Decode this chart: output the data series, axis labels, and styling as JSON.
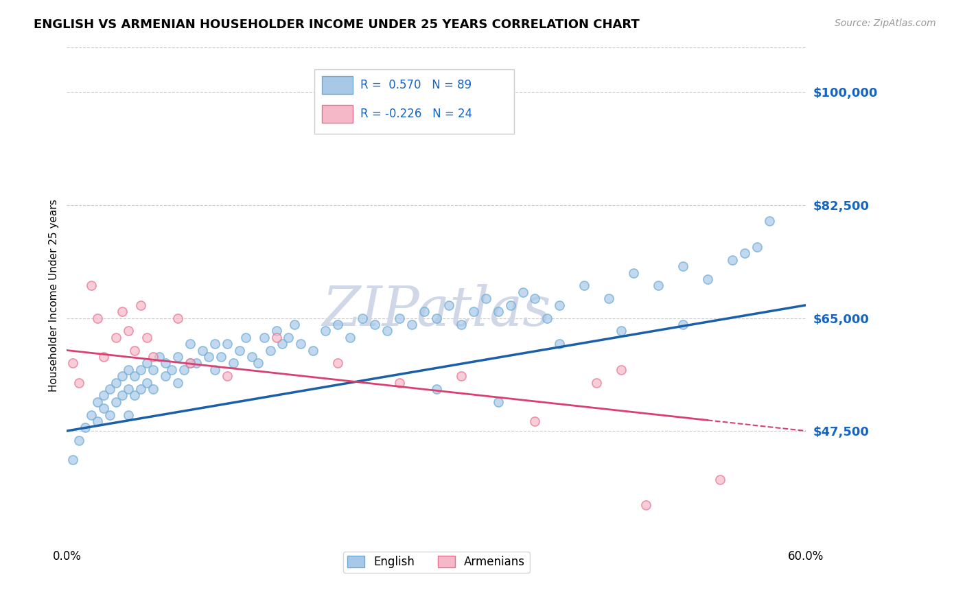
{
  "title": "ENGLISH VS ARMENIAN HOUSEHOLDER INCOME UNDER 25 YEARS CORRELATION CHART",
  "source": "Source: ZipAtlas.com",
  "ylabel": "Householder Income Under 25 years",
  "xmin": 0.0,
  "xmax": 0.6,
  "ymin": 30000,
  "ymax": 107000,
  "yticks": [
    47500,
    65000,
    82500,
    100000
  ],
  "ytick_labels": [
    "$47,500",
    "$65,000",
    "$82,500",
    "$100,000"
  ],
  "xtick_labels": [
    "0.0%",
    "60.0%"
  ],
  "english_R": 0.57,
  "english_N": 89,
  "armenian_R": -0.226,
  "armenian_N": 24,
  "english_color": "#a8c8e8",
  "english_edge_color": "#6aaad4",
  "english_line_color": "#1a5fa8",
  "armenian_color": "#f4b8c8",
  "armenian_edge_color": "#e87090",
  "armenian_line_color": "#d94070",
  "legend_R_color": "#1565C0",
  "watermark_color": "#d0d8e8",
  "background_color": "#ffffff",
  "grid_color": "#cccccc",
  "english_x": [
    0.005,
    0.01,
    0.015,
    0.02,
    0.025,
    0.025,
    0.03,
    0.03,
    0.035,
    0.035,
    0.04,
    0.04,
    0.045,
    0.045,
    0.05,
    0.05,
    0.05,
    0.055,
    0.055,
    0.06,
    0.06,
    0.065,
    0.065,
    0.07,
    0.07,
    0.075,
    0.08,
    0.08,
    0.085,
    0.09,
    0.09,
    0.095,
    0.1,
    0.1,
    0.105,
    0.11,
    0.115,
    0.12,
    0.12,
    0.125,
    0.13,
    0.135,
    0.14,
    0.145,
    0.15,
    0.155,
    0.16,
    0.165,
    0.17,
    0.175,
    0.18,
    0.185,
    0.19,
    0.2,
    0.21,
    0.22,
    0.23,
    0.24,
    0.25,
    0.26,
    0.27,
    0.28,
    0.29,
    0.3,
    0.31,
    0.32,
    0.33,
    0.34,
    0.35,
    0.36,
    0.37,
    0.38,
    0.39,
    0.4,
    0.42,
    0.44,
    0.46,
    0.48,
    0.5,
    0.52,
    0.54,
    0.55,
    0.56,
    0.57,
    0.5,
    0.45,
    0.4,
    0.35,
    0.3
  ],
  "english_y": [
    43000,
    46000,
    48000,
    50000,
    52000,
    49000,
    51000,
    53000,
    50000,
    54000,
    52000,
    55000,
    53000,
    56000,
    54000,
    50000,
    57000,
    53000,
    56000,
    54000,
    57000,
    55000,
    58000,
    54000,
    57000,
    59000,
    56000,
    58000,
    57000,
    55000,
    59000,
    57000,
    58000,
    61000,
    58000,
    60000,
    59000,
    57000,
    61000,
    59000,
    61000,
    58000,
    60000,
    62000,
    59000,
    58000,
    62000,
    60000,
    63000,
    61000,
    62000,
    64000,
    61000,
    60000,
    63000,
    64000,
    62000,
    65000,
    64000,
    63000,
    65000,
    64000,
    66000,
    65000,
    67000,
    64000,
    66000,
    68000,
    66000,
    67000,
    69000,
    68000,
    65000,
    67000,
    70000,
    68000,
    72000,
    70000,
    73000,
    71000,
    74000,
    75000,
    76000,
    80000,
    64000,
    63000,
    61000,
    52000,
    54000
  ],
  "armenian_x": [
    0.005,
    0.01,
    0.02,
    0.025,
    0.03,
    0.04,
    0.045,
    0.05,
    0.055,
    0.06,
    0.065,
    0.07,
    0.09,
    0.1,
    0.13,
    0.17,
    0.22,
    0.27,
    0.32,
    0.38,
    0.43,
    0.45,
    0.47,
    0.53
  ],
  "armenian_y": [
    58000,
    55000,
    70000,
    65000,
    59000,
    62000,
    66000,
    63000,
    60000,
    67000,
    62000,
    59000,
    65000,
    58000,
    56000,
    62000,
    58000,
    55000,
    56000,
    49000,
    55000,
    57000,
    36000,
    40000
  ]
}
